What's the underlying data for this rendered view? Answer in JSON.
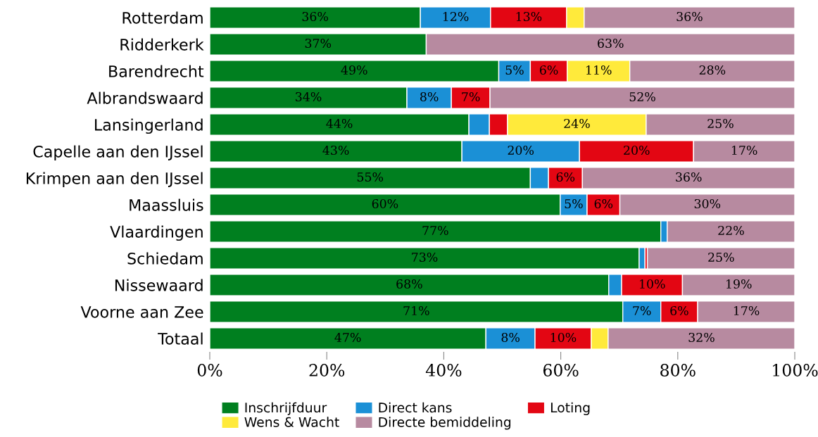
{
  "chart_data": {
    "type": "bar",
    "orientation": "horizontal",
    "stacked": true,
    "categories": [
      "Rotterdam",
      "Ridderkerk",
      "Barendrecht",
      "Albrandswaard",
      "Lansingerland",
      "Capelle aan den IJssel",
      "Krimpen aan den IJssel",
      "Maassluis",
      "Vlaardingen",
      "Schiedam",
      "Nissewaard",
      "Voorne aan Zee",
      "Totaal"
    ],
    "series": [
      {
        "name": "Inschrijfduur",
        "color": "#007f1f",
        "values": [
          36,
          37,
          49.4,
          33.7,
          44.3,
          43.1,
          54.8,
          59.9,
          77.1,
          73.4,
          68.2,
          70.6,
          47.2
        ],
        "value_labels": [
          "36%",
          "37%",
          "49%",
          "34%",
          "44%",
          "43%",
          "55%",
          "60%",
          "77%",
          "73%",
          "68%",
          "71%",
          "47%"
        ]
      },
      {
        "name": "Direct kans",
        "color": "#1b90d6",
        "values": [
          12,
          null,
          5.4,
          7.6,
          3.5,
          20.1,
          3.1,
          4.6,
          1.1,
          1.0,
          2.2,
          6.5,
          8.4
        ],
        "value_labels": [
          "12%",
          null,
          "5%",
          "8%",
          null,
          "20%",
          null,
          "5%",
          null,
          null,
          null,
          "7%",
          "8%"
        ]
      },
      {
        "name": "Loting",
        "color": "#e30613",
        "values": [
          13,
          0,
          6.3,
          6.6,
          3.1,
          19.5,
          5.8,
          5.6,
          0,
          0.4,
          10.4,
          6.3,
          9.6
        ],
        "value_labels": [
          "13%",
          null,
          "6%",
          "7%",
          null,
          "20%",
          "6%",
          "6%",
          null,
          null,
          "10%",
          "6%",
          "10%"
        ]
      },
      {
        "name": "Wens & Wacht",
        "color": "#ffea3b",
        "values": [
          3,
          0,
          10.7,
          0,
          23.7,
          0,
          0,
          0,
          0,
          0,
          0,
          0,
          2.9
        ],
        "value_labels": [
          null,
          null,
          "11%",
          null,
          "24%",
          null,
          null,
          null,
          null,
          null,
          null,
          null,
          null
        ]
      },
      {
        "name": "Directe bemiddeling",
        "color": "#b78aa0",
        "values": [
          36,
          63,
          28.2,
          52.1,
          25.4,
          17.3,
          36.3,
          29.9,
          21.8,
          25.2,
          19.2,
          16.6,
          31.9
        ],
        "value_labels": [
          "36%",
          "63%",
          "28%",
          "52%",
          "25%",
          "17%",
          "36%",
          "30%",
          "22%",
          "25%",
          "19%",
          "17%",
          "32%"
        ]
      }
    ],
    "xlim": [
      0,
      100
    ],
    "xticks": [
      {
        "value": 0,
        "label": "0%"
      },
      {
        "value": 20,
        "label": "20%"
      },
      {
        "value": 40,
        "label": "40%"
      },
      {
        "value": 60,
        "label": "60%"
      },
      {
        "value": 80,
        "label": "80%"
      },
      {
        "value": 100,
        "label": "100%"
      }
    ],
    "grid": false,
    "legend": "bottom"
  }
}
